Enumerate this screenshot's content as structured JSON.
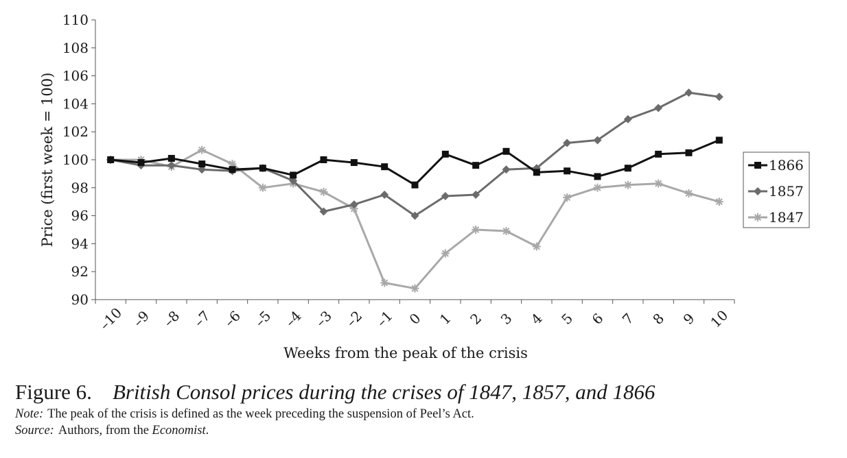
{
  "chart_data": {
    "type": "line",
    "xlabel": "Weeks from the peak of the crisis",
    "ylabel": "Price (first week = 100)",
    "x": [
      -10,
      -9,
      -8,
      -7,
      -6,
      -5,
      -4,
      -3,
      -2,
      -1,
      0,
      1,
      2,
      3,
      4,
      5,
      6,
      7,
      8,
      9,
      10
    ],
    "x_tick_labels": [
      "–10",
      "–9",
      "–8",
      "–7",
      "–6",
      "–5",
      "–4",
      "–3",
      "–2",
      "–1",
      "0",
      "1",
      "2",
      "3",
      "4",
      "5",
      "6",
      "7",
      "8",
      "9",
      "10"
    ],
    "ylim": [
      90,
      110
    ],
    "y_ticks": [
      90,
      92,
      94,
      96,
      98,
      100,
      102,
      104,
      106,
      108,
      110
    ],
    "grid": false,
    "legend_position": "right",
    "series": [
      {
        "name": "1866",
        "color": "#111111",
        "marker": "square",
        "values": [
          100.0,
          99.8,
          100.1,
          99.7,
          99.3,
          99.4,
          98.9,
          100.0,
          99.8,
          99.5,
          98.2,
          100.4,
          99.6,
          100.6,
          99.1,
          99.2,
          98.8,
          99.4,
          100.4,
          100.5,
          101.4
        ]
      },
      {
        "name": "1857",
        "color": "#6b6b6b",
        "marker": "diamond",
        "values": [
          100.0,
          99.6,
          99.6,
          99.3,
          99.2,
          99.4,
          98.5,
          96.3,
          96.8,
          97.5,
          96.0,
          97.4,
          97.5,
          99.3,
          99.4,
          101.2,
          101.4,
          102.9,
          103.7,
          104.8,
          104.5
        ]
      },
      {
        "name": "1847",
        "color": "#a8a8a8",
        "marker": "star",
        "values": [
          100.0,
          100.0,
          99.5,
          100.7,
          99.7,
          98.0,
          98.3,
          97.7,
          96.5,
          91.2,
          90.8,
          93.3,
          95.0,
          94.9,
          93.8,
          97.3,
          98.0,
          98.2,
          98.3,
          97.6,
          97.0
        ]
      }
    ]
  },
  "caption": {
    "figure_label": "Figure 6.",
    "title": "British Consol prices during the crises of 1847, 1857, and 1866",
    "note_label": "Note:",
    "note_text": "The peak of the crisis is defined as the week preceding the suspension of Peel’s Act.",
    "source_label": "Source:",
    "source_text_before": "Authors, from the",
    "source_publication": "Economist",
    "source_text_after": "."
  }
}
